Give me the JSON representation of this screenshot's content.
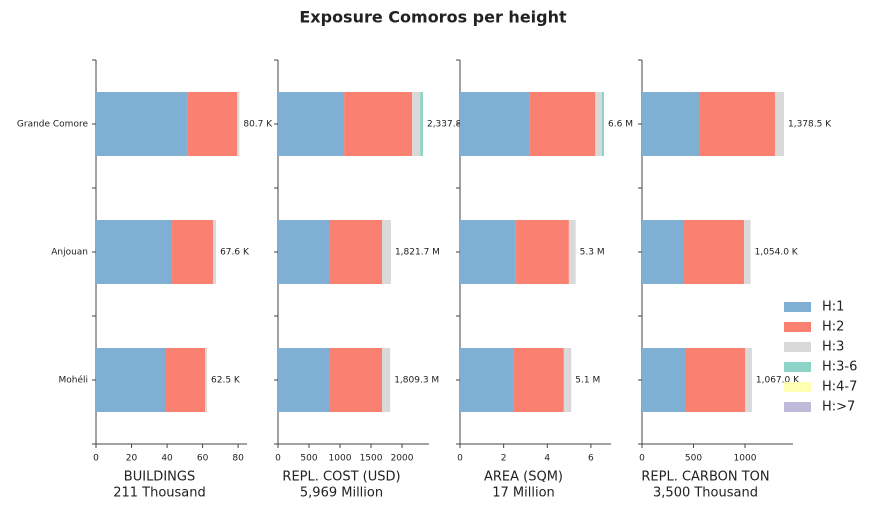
{
  "chart_data": {
    "type": "stacked-barh",
    "title": "Exposure Comoros per height",
    "categories": [
      "Grande Comore",
      "Anjouan",
      "Mohéli"
    ],
    "series": [
      {
        "name": "H:1",
        "color": "#7fafd2"
      },
      {
        "name": "H:2",
        "color": "#fa8072"
      },
      {
        "name": "H:3",
        "color": "#d9d9d9"
      },
      {
        "name": "H:3-6",
        "color": "#8dd3c7"
      },
      {
        "name": "H:4-7",
        "color": "#ffffb3"
      },
      {
        "name": "H:>7",
        "color": "#bebada"
      }
    ],
    "panels": [
      {
        "xlabel": "BUILDINGS",
        "xlabel_note": "211 Thousand",
        "xlim": [
          0,
          85
        ],
        "xticks": [
          0,
          20,
          40,
          60,
          80
        ],
        "values": [
          [
            51.3,
            42.8,
            39.4
          ],
          [
            28.2,
            23.1,
            22.0
          ],
          [
            1.2,
            1.7,
            1.1
          ],
          [
            0,
            0,
            0
          ],
          [
            0,
            0,
            0
          ],
          [
            0,
            0,
            0
          ]
        ],
        "totals": [
          80.7,
          67.6,
          62.5
        ],
        "total_labels": [
          "80.7 K",
          "67.6 K",
          "62.5 K"
        ]
      },
      {
        "xlabel": "REPL. COST (USD)",
        "xlabel_note": "5,969 Million",
        "xlim": [
          0,
          2435
        ],
        "xticks": [
          0,
          500,
          1000,
          1500,
          2000
        ],
        "values": [
          [
            1066,
            823,
            823
          ],
          [
            1097,
            855,
            855
          ],
          [
            130,
            143.7,
            131.3
          ],
          [
            44.8,
            0,
            0
          ],
          [
            0,
            0,
            0
          ],
          [
            0,
            0,
            0
          ]
        ],
        "totals": [
          2337.8,
          1821.7,
          1809.3
        ],
        "total_labels": [
          "2,337.8 M",
          "1,821.7 M",
          "1,809.3 M"
        ]
      },
      {
        "xlabel": "AREA (SQM)",
        "xlabel_note": "17 Million",
        "xlim": [
          0,
          6.92
        ],
        "xticks": [
          0,
          2,
          4,
          6
        ],
        "values": [
          [
            3.2,
            2.56,
            2.47
          ],
          [
            3.0,
            2.43,
            2.29
          ],
          [
            0.3,
            0.31,
            0.34
          ],
          [
            0.1,
            0,
            0
          ],
          [
            0,
            0,
            0
          ],
          [
            0,
            0,
            0
          ]
        ],
        "totals": [
          6.6,
          5.3,
          5.1
        ],
        "total_labels": [
          "6.6 M",
          "5.3 M",
          "5.1 M"
        ]
      },
      {
        "xlabel": "REPL. CARBON TON",
        "xlabel_note": "3,500 Thousand",
        "xlim": [
          0,
          1466
        ],
        "xticks": [
          0,
          500,
          1000
        ],
        "values": [
          [
            553,
            408,
            427
          ],
          [
            738,
            583,
            573
          ],
          [
            87.5,
            63,
            67
          ],
          [
            0,
            0,
            0
          ],
          [
            0,
            0,
            0
          ],
          [
            0,
            0,
            0
          ]
        ],
        "totals": [
          1378.5,
          1054.0,
          1067.0
        ],
        "total_labels": [
          "1,378.5 K",
          "1,054.0 K",
          "1,067.0 K"
        ]
      }
    ]
  }
}
